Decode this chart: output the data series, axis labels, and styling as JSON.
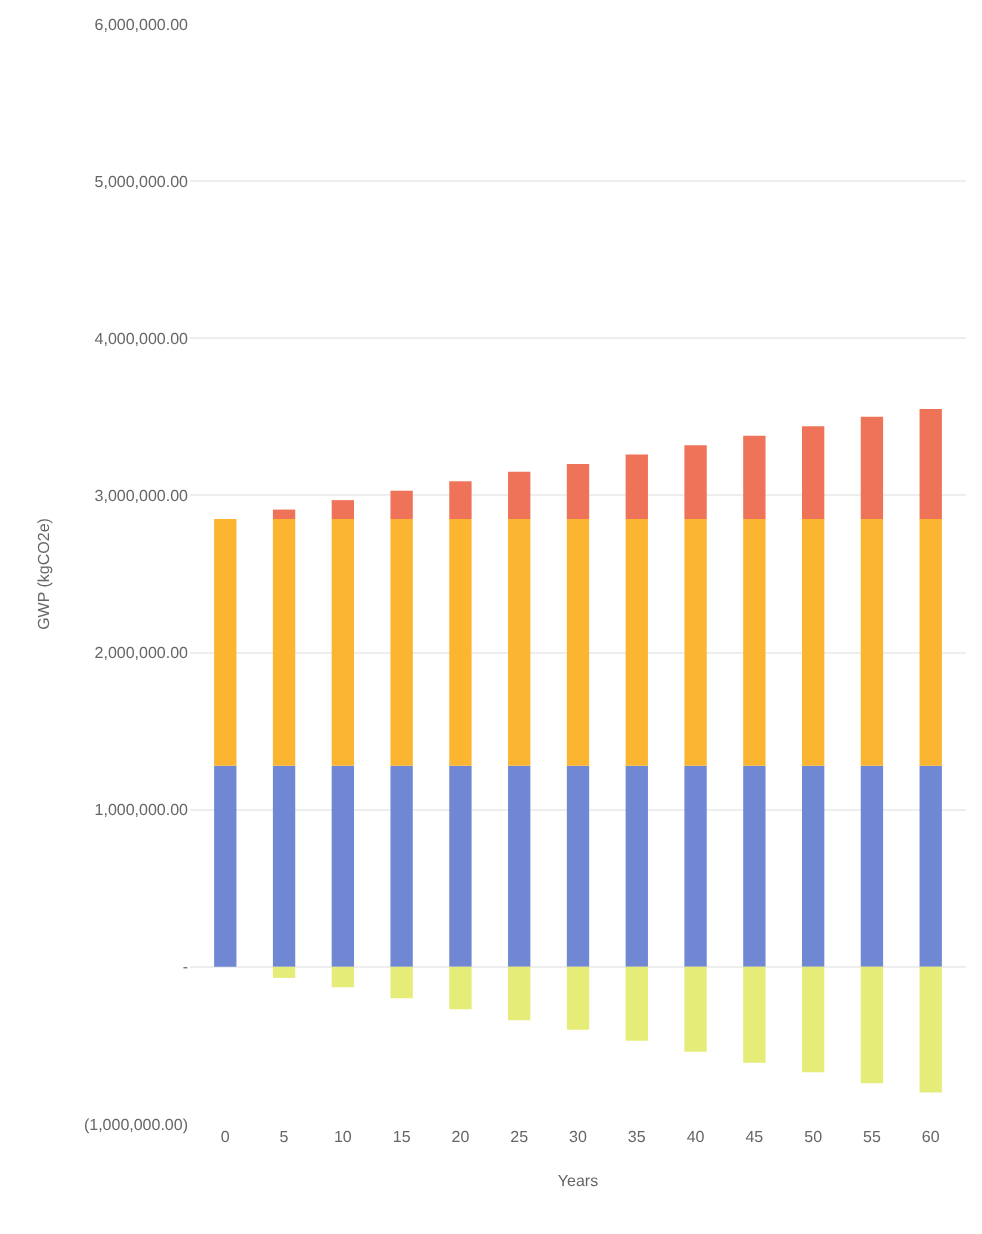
{
  "chart_data": {
    "type": "bar",
    "stacked": true,
    "xlabel": "Years",
    "ylabel": "GWP (kgCO2e)",
    "categories": [
      "0",
      "5",
      "10",
      "15",
      "20",
      "25",
      "30",
      "35",
      "40",
      "45",
      "50",
      "55",
      "60"
    ],
    "series": [
      {
        "color": "#7088d4",
        "values": [
          1280000,
          1280000,
          1280000,
          1280000,
          1280000,
          1280000,
          1280000,
          1280000,
          1280000,
          1280000,
          1280000,
          1280000,
          1280000
        ]
      },
      {
        "color": "#fbb531",
        "values": [
          1570000,
          1570000,
          1570000,
          1570000,
          1570000,
          1570000,
          1570000,
          1570000,
          1570000,
          1570000,
          1570000,
          1570000,
          1570000
        ]
      },
      {
        "color": "#ef7358",
        "values": [
          null,
          60000,
          120000,
          180000,
          240000,
          300000,
          350000,
          410000,
          470000,
          530000,
          590000,
          650000,
          700000
        ]
      },
      {
        "color": "#e6ec78",
        "values": [
          null,
          -70000,
          -130000,
          -200000,
          -270000,
          -340000,
          -400000,
          -470000,
          -540000,
          -610000,
          -670000,
          -740000,
          -800000
        ]
      }
    ],
    "ylim": [
      -1000000,
      6000000
    ],
    "yticks": [
      {
        "value": -1000000,
        "label": "(1,000,000.00)"
      },
      {
        "value": 0,
        "label": "-"
      },
      {
        "value": 1000000,
        "label": "1,000,000.00"
      },
      {
        "value": 2000000,
        "label": "2,000,000.00"
      },
      {
        "value": 3000000,
        "label": "3,000,000.00"
      },
      {
        "value": 4000000,
        "label": "4,000,000.00"
      },
      {
        "value": 5000000,
        "label": "5,000,000.00"
      },
      {
        "value": 6000000,
        "label": "6,000,000.00"
      }
    ],
    "grid": "y"
  }
}
